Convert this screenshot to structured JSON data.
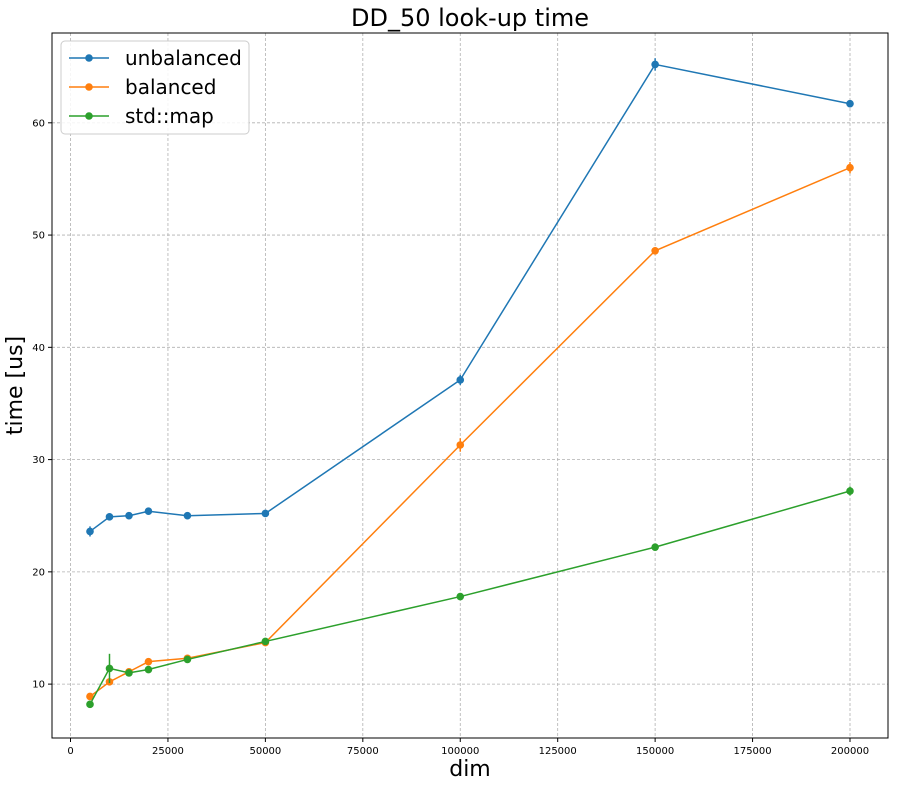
{
  "chart_data": {
    "type": "line",
    "title": "DD_50 look-up time",
    "xlabel": "dim",
    "ylabel": "time [us]",
    "xlim": [
      -4750,
      209750
    ],
    "ylim": [
      5.2,
      68.0
    ],
    "grid": true,
    "legend_position": "top-left",
    "x": [
      5000,
      10000,
      15000,
      20000,
      30000,
      50000,
      100000,
      150000,
      200000
    ],
    "x_ticks": [
      0,
      25000,
      50000,
      75000,
      100000,
      125000,
      150000,
      175000,
      200000
    ],
    "y_ticks": [
      10,
      20,
      30,
      40,
      50,
      60
    ],
    "series": [
      {
        "name": "unbalanced",
        "color": "#1f77b4",
        "values": [
          23.6,
          24.9,
          25.0,
          25.4,
          25.0,
          25.2,
          37.1,
          65.2,
          61.7
        ],
        "errors": [
          0.45,
          0.2,
          0.2,
          0.2,
          0.2,
          0.15,
          0.45,
          0.55,
          0.25
        ]
      },
      {
        "name": "balanced",
        "color": "#ff7f0e",
        "values": [
          8.9,
          10.2,
          11.1,
          12.0,
          12.3,
          13.7,
          31.3,
          48.6,
          56.0
        ],
        "errors": [
          0.2,
          0.2,
          0.2,
          0.2,
          0.2,
          0.2,
          0.6,
          0.3,
          0.5
        ]
      },
      {
        "name": "std::map",
        "color": "#2ca02c",
        "values": [
          8.2,
          11.4,
          11.0,
          11.3,
          12.2,
          13.8,
          17.8,
          22.2,
          27.2
        ],
        "errors": [
          0.2,
          1.3,
          0.2,
          0.2,
          0.2,
          0.2,
          0.2,
          0.3,
          0.4
        ]
      }
    ]
  }
}
